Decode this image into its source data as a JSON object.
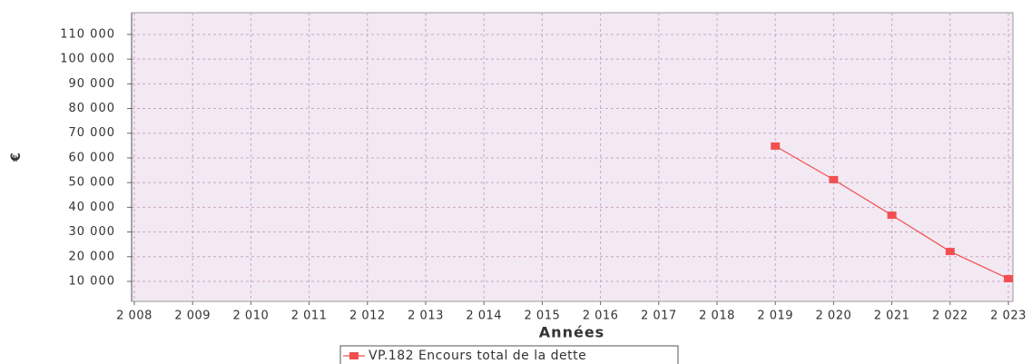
{
  "chart_data": {
    "type": "line",
    "x_label": "Années",
    "y_label": "€",
    "x": [
      2019,
      2020,
      2021,
      2022,
      2023
    ],
    "series": [
      {
        "name": "VP.182 Encours total de la dette",
        "color": "#f25050",
        "values": [
          64800,
          51200,
          36800,
          22100,
          11100
        ]
      }
    ],
    "xlim": [
      2008,
      2023
    ],
    "xticks": [
      {
        "value": 2008,
        "label": "2 008"
      },
      {
        "value": 2009,
        "label": "2 009"
      },
      {
        "value": 2010,
        "label": "2 010"
      },
      {
        "value": 2011,
        "label": "2 011"
      },
      {
        "value": 2012,
        "label": "2 012"
      },
      {
        "value": 2013,
        "label": "2 013"
      },
      {
        "value": 2014,
        "label": "2 014"
      },
      {
        "value": 2015,
        "label": "2 015"
      },
      {
        "value": 2016,
        "label": "2 016"
      },
      {
        "value": 2017,
        "label": "2 017"
      },
      {
        "value": 2018,
        "label": "2 018"
      },
      {
        "value": 2019,
        "label": "2 019"
      },
      {
        "value": 2020,
        "label": "2 020"
      },
      {
        "value": 2021,
        "label": "2 021"
      },
      {
        "value": 2022,
        "label": "2 022"
      },
      {
        "value": 2023,
        "label": "2 023"
      }
    ],
    "ylim": [
      1900,
      118800
    ],
    "yticks": [
      {
        "value": 10000,
        "label": "10 000"
      },
      {
        "value": 20000,
        "label": "20 000"
      },
      {
        "value": 30000,
        "label": "30 000"
      },
      {
        "value": 40000,
        "label": "40 000"
      },
      {
        "value": 50000,
        "label": "50 000"
      },
      {
        "value": 60000,
        "label": "60 000"
      },
      {
        "value": 70000,
        "label": "70 000"
      },
      {
        "value": 80000,
        "label": "80 000"
      },
      {
        "value": 90000,
        "label": "90 000"
      },
      {
        "value": 100000,
        "label": "100 000"
      },
      {
        "value": 110000,
        "label": "110 000"
      }
    ],
    "grid": true,
    "legend": "bottom"
  }
}
